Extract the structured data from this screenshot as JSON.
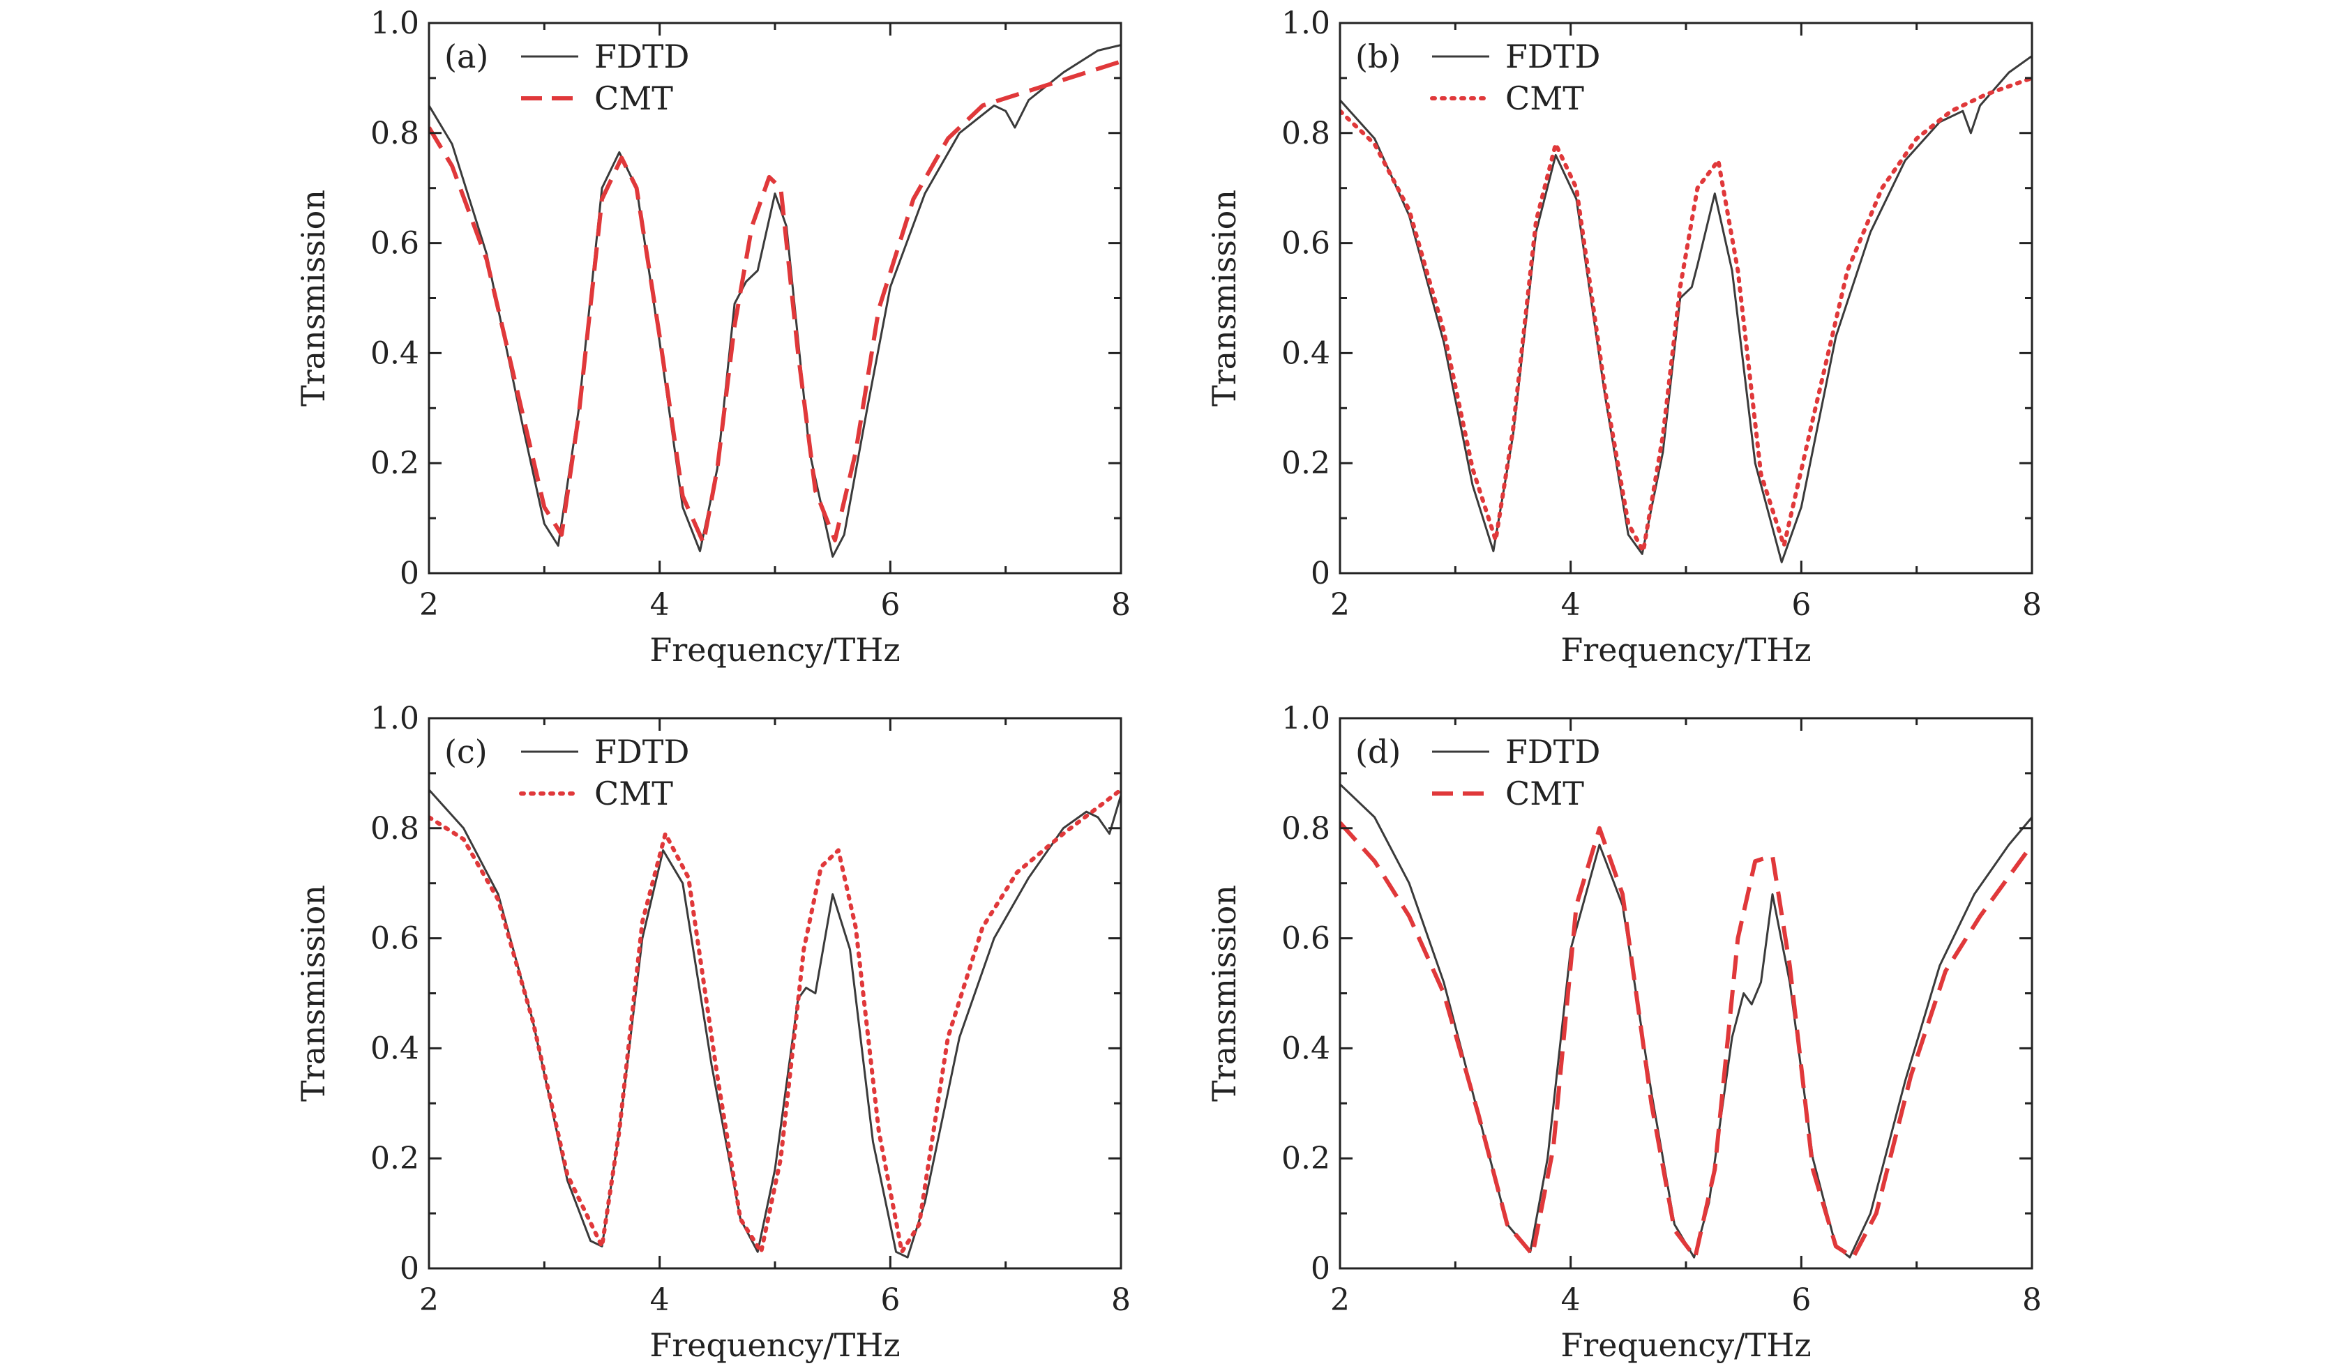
{
  "figure": {
    "colors": {
      "fdtd": "#3a3a3a",
      "cmt": "#e0383a",
      "axis": "#222222"
    }
  },
  "chart_data": [
    {
      "type": "line",
      "panel": "(a)",
      "xlabel": "Frequency/THz",
      "ylabel": "Transmission",
      "xlim": [
        2,
        8
      ],
      "ylim": [
        0,
        1.0
      ],
      "xticks": [
        "2",
        "4",
        "6",
        "8"
      ],
      "yticks": [
        "0",
        "0.2",
        "0.4",
        "0.6",
        "0.8",
        "1.0"
      ],
      "legend_position": "top-left",
      "series": [
        {
          "name": "FDTD",
          "style": "solid",
          "x": [
            2.0,
            2.2,
            2.5,
            2.8,
            3.0,
            3.12,
            3.3,
            3.5,
            3.65,
            3.8,
            4.0,
            4.2,
            4.35,
            4.5,
            4.65,
            4.75,
            4.85,
            5.0,
            5.1,
            5.3,
            5.5,
            5.6,
            5.8,
            6.0,
            6.3,
            6.6,
            6.9,
            7.0,
            7.08,
            7.2,
            7.5,
            7.8,
            8.0
          ],
          "y": [
            0.85,
            0.78,
            0.58,
            0.28,
            0.09,
            0.05,
            0.3,
            0.7,
            0.765,
            0.7,
            0.42,
            0.12,
            0.04,
            0.19,
            0.49,
            0.53,
            0.55,
            0.69,
            0.63,
            0.22,
            0.03,
            0.07,
            0.3,
            0.52,
            0.69,
            0.8,
            0.85,
            0.84,
            0.81,
            0.86,
            0.91,
            0.95,
            0.96
          ]
        },
        {
          "name": "CMT",
          "style": "dashed",
          "x": [
            2.0,
            2.2,
            2.5,
            2.8,
            3.0,
            3.15,
            3.3,
            3.5,
            3.67,
            3.8,
            4.0,
            4.2,
            4.38,
            4.5,
            4.65,
            4.8,
            4.95,
            5.05,
            5.2,
            5.35,
            5.52,
            5.7,
            5.9,
            6.2,
            6.5,
            6.8,
            7.1,
            7.4,
            7.7,
            8.0
          ],
          "y": [
            0.81,
            0.74,
            0.57,
            0.3,
            0.12,
            0.07,
            0.29,
            0.68,
            0.755,
            0.7,
            0.43,
            0.14,
            0.055,
            0.19,
            0.45,
            0.63,
            0.72,
            0.7,
            0.4,
            0.15,
            0.06,
            0.22,
            0.48,
            0.68,
            0.79,
            0.85,
            0.87,
            0.89,
            0.91,
            0.93
          ]
        }
      ]
    },
    {
      "type": "line",
      "panel": "(b)",
      "xlabel": "Frequency/THz",
      "ylabel": "Transmission",
      "xlim": [
        2,
        8
      ],
      "ylim": [
        0,
        1.0
      ],
      "xticks": [
        "2",
        "4",
        "6",
        "8"
      ],
      "yticks": [
        "0",
        "0.2",
        "0.4",
        "0.6",
        "0.8",
        "1.0"
      ],
      "legend_position": "top-left",
      "series": [
        {
          "name": "FDTD",
          "style": "solid",
          "x": [
            2.0,
            2.3,
            2.6,
            2.9,
            3.15,
            3.33,
            3.5,
            3.7,
            3.87,
            4.05,
            4.3,
            4.5,
            4.62,
            4.8,
            4.95,
            5.05,
            5.1,
            5.25,
            5.4,
            5.6,
            5.83,
            6.0,
            6.3,
            6.6,
            6.9,
            7.2,
            7.4,
            7.47,
            7.55,
            7.8,
            8.0
          ],
          "y": [
            0.86,
            0.79,
            0.65,
            0.42,
            0.16,
            0.04,
            0.25,
            0.62,
            0.76,
            0.68,
            0.32,
            0.07,
            0.035,
            0.22,
            0.5,
            0.52,
            0.56,
            0.69,
            0.55,
            0.2,
            0.02,
            0.12,
            0.43,
            0.62,
            0.75,
            0.82,
            0.84,
            0.8,
            0.85,
            0.91,
            0.94
          ]
        },
        {
          "name": "CMT",
          "style": "dotted",
          "x": [
            2.0,
            2.3,
            2.6,
            2.9,
            3.15,
            3.35,
            3.5,
            3.7,
            3.87,
            4.05,
            4.3,
            4.5,
            4.63,
            4.8,
            4.95,
            5.1,
            5.28,
            5.45,
            5.65,
            5.85,
            6.1,
            6.4,
            6.7,
            7.0,
            7.3,
            7.6,
            8.0
          ],
          "y": [
            0.84,
            0.78,
            0.66,
            0.44,
            0.19,
            0.06,
            0.26,
            0.64,
            0.78,
            0.7,
            0.33,
            0.09,
            0.04,
            0.25,
            0.52,
            0.7,
            0.75,
            0.55,
            0.18,
            0.05,
            0.28,
            0.55,
            0.7,
            0.79,
            0.84,
            0.87,
            0.9
          ]
        }
      ]
    },
    {
      "type": "line",
      "panel": "(c)",
      "xlabel": "Frequency/THz",
      "ylabel": "Transmission",
      "xlim": [
        2,
        8
      ],
      "ylim": [
        0,
        1.0
      ],
      "xticks": [
        "2",
        "4",
        "6",
        "8"
      ],
      "yticks": [
        "0",
        "0.2",
        "0.4",
        "0.6",
        "0.8",
        "1.0"
      ],
      "legend_position": "top-left",
      "series": [
        {
          "name": "FDTD",
          "style": "solid",
          "x": [
            2.0,
            2.3,
            2.6,
            2.9,
            3.2,
            3.4,
            3.5,
            3.65,
            3.85,
            4.03,
            4.2,
            4.45,
            4.7,
            4.85,
            5.0,
            5.2,
            5.27,
            5.35,
            5.5,
            5.65,
            5.85,
            6.05,
            6.15,
            6.3,
            6.6,
            6.9,
            7.2,
            7.5,
            7.7,
            7.8,
            7.9,
            8.0
          ],
          "y": [
            0.87,
            0.8,
            0.68,
            0.45,
            0.16,
            0.05,
            0.04,
            0.25,
            0.6,
            0.76,
            0.7,
            0.37,
            0.09,
            0.03,
            0.18,
            0.49,
            0.51,
            0.5,
            0.68,
            0.58,
            0.23,
            0.03,
            0.02,
            0.12,
            0.42,
            0.6,
            0.71,
            0.8,
            0.83,
            0.82,
            0.79,
            0.86
          ]
        },
        {
          "name": "CMT",
          "style": "dotted",
          "x": [
            2.0,
            2.3,
            2.6,
            2.9,
            3.2,
            3.5,
            3.65,
            3.85,
            4.05,
            4.25,
            4.5,
            4.7,
            4.88,
            5.05,
            5.25,
            5.4,
            5.55,
            5.7,
            5.9,
            6.1,
            6.25,
            6.5,
            6.8,
            7.1,
            7.5,
            8.0
          ],
          "y": [
            0.82,
            0.78,
            0.67,
            0.45,
            0.17,
            0.04,
            0.25,
            0.63,
            0.79,
            0.71,
            0.35,
            0.09,
            0.03,
            0.2,
            0.58,
            0.73,
            0.76,
            0.62,
            0.25,
            0.03,
            0.08,
            0.42,
            0.62,
            0.72,
            0.79,
            0.87
          ]
        }
      ]
    },
    {
      "type": "line",
      "panel": "(d)",
      "xlabel": "Frequency/THz",
      "ylabel": "Transmission",
      "xlim": [
        2,
        8
      ],
      "ylim": [
        0,
        1.0
      ],
      "xticks": [
        "2",
        "4",
        "6",
        "8"
      ],
      "yticks": [
        "0",
        "0.2",
        "0.4",
        "0.6",
        "0.8",
        "1.0"
      ],
      "legend_position": "top-left",
      "series": [
        {
          "name": "FDTD",
          "style": "solid",
          "x": [
            2.0,
            2.3,
            2.6,
            2.9,
            3.2,
            3.45,
            3.65,
            3.8,
            4.0,
            4.25,
            4.45,
            4.7,
            4.9,
            5.07,
            5.2,
            5.4,
            5.5,
            5.57,
            5.65,
            5.75,
            5.9,
            6.1,
            6.3,
            6.42,
            6.6,
            6.9,
            7.2,
            7.5,
            7.8,
            8.0
          ],
          "y": [
            0.88,
            0.82,
            0.7,
            0.52,
            0.28,
            0.08,
            0.03,
            0.2,
            0.58,
            0.77,
            0.66,
            0.32,
            0.08,
            0.02,
            0.12,
            0.42,
            0.5,
            0.48,
            0.52,
            0.68,
            0.52,
            0.2,
            0.04,
            0.02,
            0.1,
            0.34,
            0.55,
            0.68,
            0.77,
            0.82
          ]
        },
        {
          "name": "CMT",
          "style": "dashed",
          "x": [
            2.0,
            2.3,
            2.6,
            2.9,
            3.2,
            3.45,
            3.67,
            3.85,
            4.05,
            4.25,
            4.45,
            4.7,
            4.9,
            5.08,
            5.25,
            5.45,
            5.6,
            5.75,
            5.9,
            6.1,
            6.3,
            6.45,
            6.65,
            6.95,
            7.25,
            7.55,
            8.0
          ],
          "y": [
            0.81,
            0.74,
            0.64,
            0.5,
            0.28,
            0.08,
            0.025,
            0.22,
            0.66,
            0.8,
            0.68,
            0.3,
            0.07,
            0.02,
            0.18,
            0.6,
            0.74,
            0.75,
            0.55,
            0.18,
            0.04,
            0.02,
            0.1,
            0.35,
            0.54,
            0.64,
            0.77
          ]
        }
      ]
    }
  ]
}
